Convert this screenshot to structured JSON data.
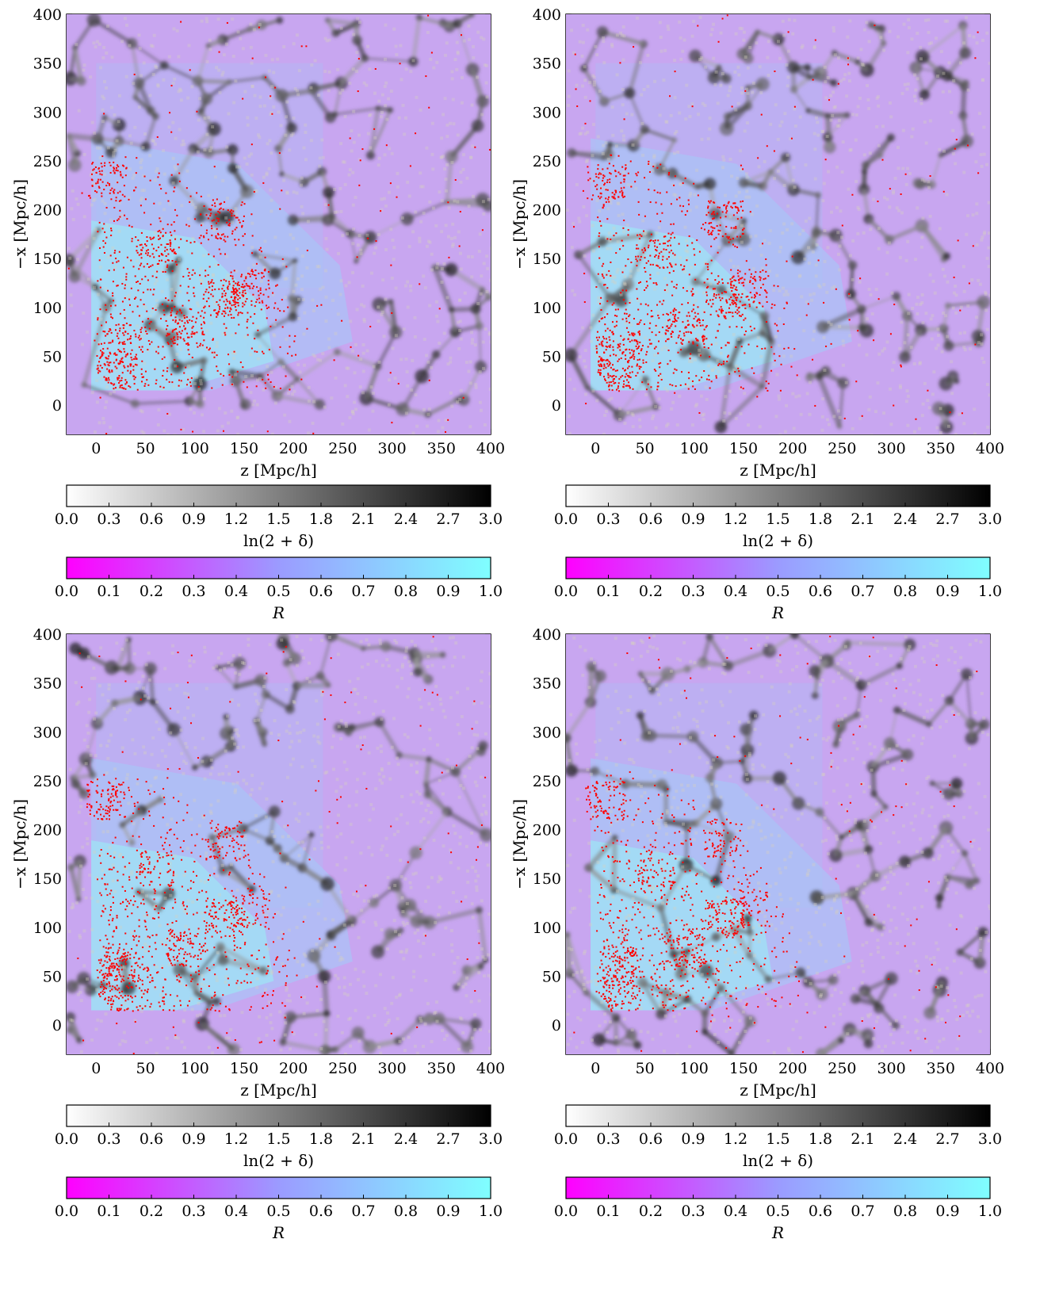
{
  "colors": {
    "density_low": "#ffffff",
    "density_high": "#000000",
    "R_low": "#ff00ff",
    "R_mid": "#9b9bff",
    "R_high": "#7fffff",
    "galaxy_points": "#ff0000",
    "axes": "#000000"
  },
  "chart_data": [
    {
      "type": "heatmap",
      "panel": "top-left",
      "xlabel": "z [Mpc/h]",
      "ylabel": "−x [Mpc/h]",
      "xlim": [
        -30,
        400
      ],
      "ylim": [
        -30,
        400
      ],
      "xticks": [
        "0",
        "50",
        "100",
        "150",
        "200",
        "250",
        "300",
        "350",
        "400"
      ],
      "yticks": [
        "0",
        "50",
        "100",
        "150",
        "200",
        "250",
        "300",
        "350",
        "400"
      ],
      "colorbars": [
        {
          "label": "ln(2 + δ)",
          "range": [
            0.0,
            3.0
          ],
          "ticks": [
            "0.0",
            "0.3",
            "0.6",
            "0.9",
            "1.2",
            "1.5",
            "1.8",
            "2.1",
            "2.4",
            "2.7",
            "3.0"
          ],
          "colormap": "gray_r"
        },
        {
          "label": "R",
          "range": [
            0.0,
            1.0
          ],
          "ticks": [
            "0.0",
            "0.1",
            "0.2",
            "0.3",
            "0.4",
            "0.5",
            "0.6",
            "0.7",
            "0.8",
            "0.9",
            "1.0"
          ],
          "colormap": "cool_r"
        }
      ]
    },
    {
      "type": "heatmap",
      "panel": "top-right",
      "xlabel": "z [Mpc/h]",
      "ylabel": "−x [Mpc/h]",
      "xlim": [
        -30,
        400
      ],
      "ylim": [
        -30,
        400
      ],
      "xticks": [
        "0",
        "50",
        "100",
        "150",
        "200",
        "250",
        "300",
        "350",
        "400"
      ],
      "yticks": [
        "0",
        "50",
        "100",
        "150",
        "200",
        "250",
        "300",
        "350",
        "400"
      ],
      "colorbars": [
        {
          "label": "ln(2 + δ)",
          "range": [
            0.0,
            3.0
          ],
          "ticks": [
            "0.0",
            "0.3",
            "0.6",
            "0.9",
            "1.2",
            "1.5",
            "1.8",
            "2.1",
            "2.4",
            "2.7",
            "3.0"
          ],
          "colormap": "gray_r"
        },
        {
          "label": "R",
          "range": [
            0.0,
            1.0
          ],
          "ticks": [
            "0.0",
            "0.1",
            "0.2",
            "0.3",
            "0.4",
            "0.5",
            "0.6",
            "0.7",
            "0.8",
            "0.9",
            "1.0"
          ],
          "colormap": "cool_r"
        }
      ]
    },
    {
      "type": "heatmap",
      "panel": "bottom-left",
      "xlabel": "z [Mpc/h]",
      "ylabel": "−x [Mpc/h]",
      "xlim": [
        -30,
        400
      ],
      "ylim": [
        -30,
        400
      ],
      "xticks": [
        "0",
        "50",
        "100",
        "150",
        "200",
        "250",
        "300",
        "350",
        "400"
      ],
      "yticks": [
        "0",
        "50",
        "100",
        "150",
        "200",
        "250",
        "300",
        "350",
        "400"
      ],
      "colorbars": [
        {
          "label": "ln(2 + δ)",
          "range": [
            0.0,
            3.0
          ],
          "ticks": [
            "0.0",
            "0.3",
            "0.6",
            "0.9",
            "1.2",
            "1.5",
            "1.8",
            "2.1",
            "2.4",
            "2.7",
            "3.0"
          ],
          "colormap": "gray_r"
        },
        {
          "label": "R",
          "range": [
            0.0,
            1.0
          ],
          "ticks": [
            "0.0",
            "0.1",
            "0.2",
            "0.3",
            "0.4",
            "0.5",
            "0.6",
            "0.7",
            "0.8",
            "0.9",
            "1.0"
          ],
          "colormap": "cool_r"
        }
      ]
    },
    {
      "type": "heatmap",
      "panel": "bottom-right",
      "xlabel": "z [Mpc/h]",
      "ylabel": "−x [Mpc/h]",
      "xlim": [
        -30,
        400
      ],
      "ylim": [
        -30,
        400
      ],
      "xticks": [
        "0",
        "50",
        "100",
        "150",
        "200",
        "250",
        "300",
        "350",
        "400"
      ],
      "yticks": [
        "0",
        "50",
        "100",
        "150",
        "200",
        "250",
        "300",
        "350",
        "400"
      ],
      "colorbars": [
        {
          "label": "ln(2 + δ)",
          "range": [
            0.0,
            3.0
          ],
          "ticks": [
            "0.0",
            "0.3",
            "0.6",
            "0.9",
            "1.2",
            "1.5",
            "1.8",
            "2.1",
            "2.4",
            "2.7",
            "3.0"
          ],
          "colormap": "gray_r"
        },
        {
          "label": "R",
          "range": [
            0.0,
            1.0
          ],
          "ticks": [
            "0.0",
            "0.1",
            "0.2",
            "0.3",
            "0.4",
            "0.5",
            "0.6",
            "0.7",
            "0.8",
            "0.9",
            "1.0"
          ],
          "colormap": "cool_r"
        }
      ]
    }
  ]
}
